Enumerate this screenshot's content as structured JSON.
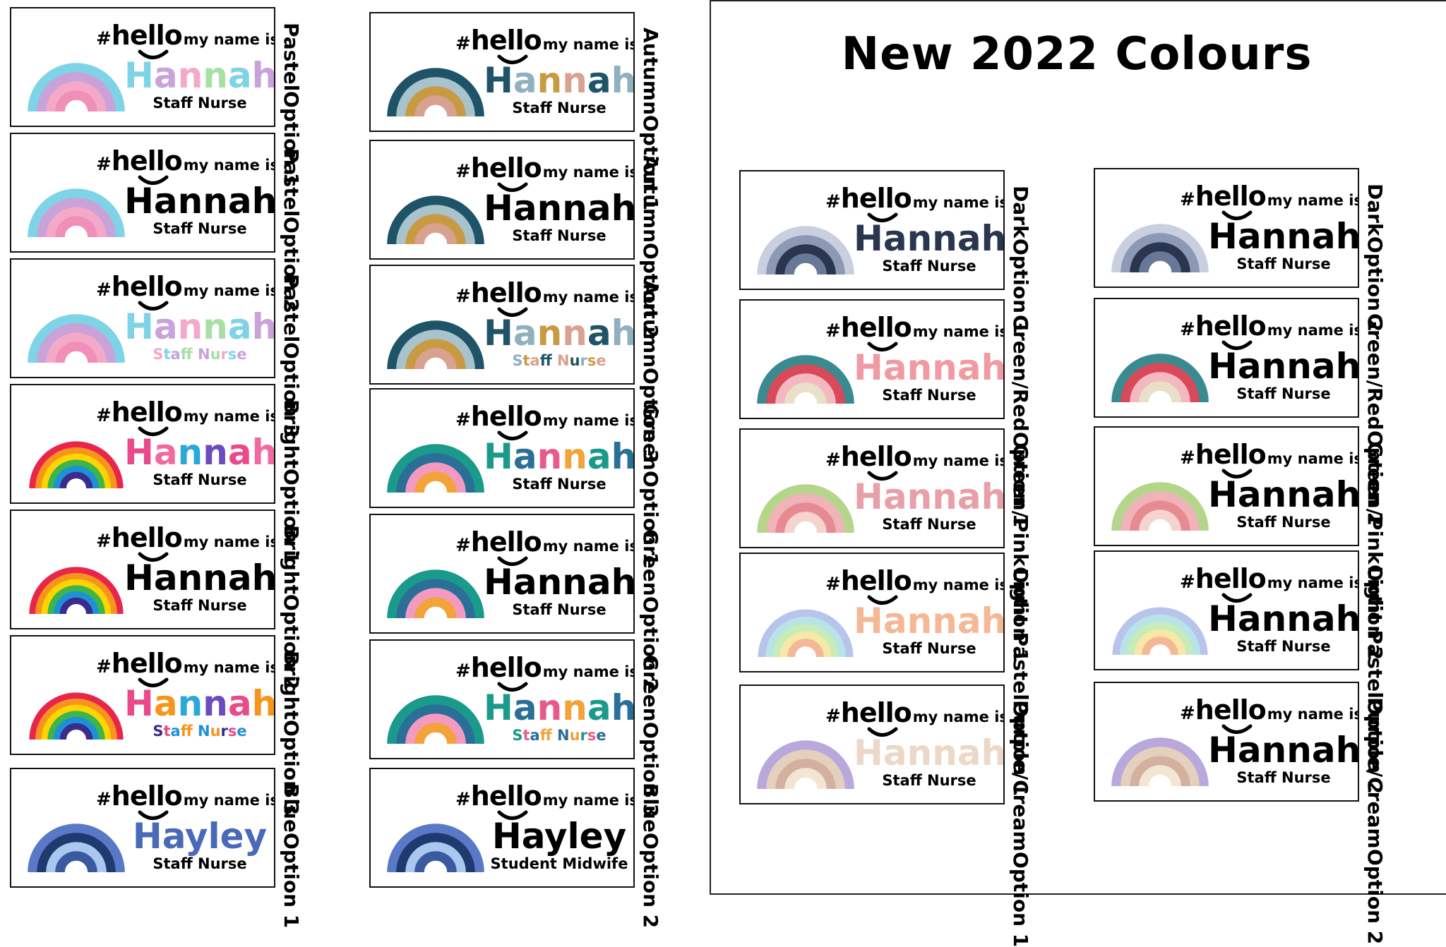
{
  "page_title": "New 2022 Colours",
  "badge_text": {
    "hash": "#",
    "hello": "hello",
    "my_name_is": "my name is..."
  },
  "badges": [
    {
      "id": "pastel-1",
      "name": "Hannah",
      "role": "Staff Nurse",
      "style": "Pastel",
      "option": "Option 1",
      "name_colors": [
        "#7fd3e6",
        "#c8a2d8",
        "#f4a9c8",
        "#a8dfa2"
      ],
      "role_colors": [
        "#000"
      ],
      "arc_colors": [
        "#7fd3e6",
        "#c8a2d8",
        "#f4a9c8",
        "#f08fb8"
      ]
    },
    {
      "id": "pastel-2",
      "name": "Hannah",
      "role": "Staff Nurse",
      "style": "Pastel",
      "option": "Option 2",
      "name_colors": [
        "#000"
      ],
      "role_colors": [
        "#000"
      ],
      "arc_colors": [
        "#7fd3e6",
        "#c8a2d8",
        "#f4a9c8",
        "#f08fb8"
      ]
    },
    {
      "id": "pastel-3",
      "name": "Hannah",
      "role": "Staff Nurse",
      "style": "Pastel",
      "option": "Option 3",
      "name_colors": [
        "#7fd3e6",
        "#c8a2d8",
        "#f4a9c8",
        "#a8dfa2"
      ],
      "role_colors": [
        "#f4a9c8",
        "#7fd3e6",
        "#c8a2d8",
        "#a8dfa2"
      ],
      "arc_colors": [
        "#7fd3e6",
        "#c8a2d8",
        "#f4a9c8",
        "#f08fb8"
      ]
    },
    {
      "id": "bright-1",
      "name": "Hannah",
      "role": "Staff Nurse",
      "style": "Bright",
      "option": "Option 1",
      "name_colors": [
        "#e84a8a",
        "#f06aa0",
        "#2aa9d8",
        "#6a4cc0"
      ],
      "role_colors": [
        "#000"
      ],
      "arc_colors": [
        "#e8264b",
        "#f7941d",
        "#ffd400",
        "#3cb54a",
        "#1e90d8",
        "#3a2b8c"
      ]
    },
    {
      "id": "bright-2",
      "name": "Hannah",
      "role": "Staff Nurse",
      "style": "Bright",
      "option": "Option 2",
      "name_colors": [
        "#000"
      ],
      "role_colors": [
        "#000"
      ],
      "arc_colors": [
        "#e8264b",
        "#f7941d",
        "#ffd400",
        "#3cb54a",
        "#1e90d8",
        "#3a2b8c"
      ]
    },
    {
      "id": "bright-3",
      "name": "Hannah",
      "role": "Staff Nurse",
      "style": "Bright",
      "option": "Option 3",
      "name_colors": [
        "#e84a8a",
        "#f7941d",
        "#2aa9d8",
        "#6a4cc0"
      ],
      "role_colors": [
        "#3a2b8c",
        "#e84a8a",
        "#1e90d8",
        "#f7941d"
      ],
      "arc_colors": [
        "#e8264b",
        "#f7941d",
        "#ffd400",
        "#3cb54a",
        "#1e90d8",
        "#3a2b8c"
      ]
    },
    {
      "id": "blue-1",
      "name": "Hayley",
      "role": "Staff Nurse",
      "style": "Blue",
      "option": "Option 1",
      "name_colors": [
        "#4a6ab8"
      ],
      "role_colors": [
        "#000"
      ],
      "arc_colors": [
        "#5a78c8",
        "#1e3a6e",
        "#a8c8f0",
        "#3a5aa0"
      ]
    },
    {
      "id": "autumn-1",
      "name": "Hannah",
      "role": "Staff Nurse",
      "style": "Autumn",
      "option": "Option 1",
      "name_colors": [
        "#1f5468",
        "#8fb0be",
        "#c99a44",
        "#d9a290"
      ],
      "role_colors": [
        "#000"
      ],
      "arc_colors": [
        "#1f5468",
        "#a8c3cc",
        "#c99a44",
        "#d9a290"
      ]
    },
    {
      "id": "autumn-2",
      "name": "Hannah",
      "role": "Staff Nurse",
      "style": "Autumn",
      "option": "Option 2",
      "name_colors": [
        "#000"
      ],
      "role_colors": [
        "#000"
      ],
      "arc_colors": [
        "#1f5468",
        "#a8c3cc",
        "#c99a44",
        "#d9a290"
      ]
    },
    {
      "id": "autumn-3",
      "name": "Hannah",
      "role": "Staff Nurse",
      "style": "Autumn",
      "option": "Option 3",
      "name_colors": [
        "#1f5468",
        "#8fb0be",
        "#c99a44",
        "#d9a290"
      ],
      "role_colors": [
        "#8fb0be",
        "#c99a44",
        "#d9a290",
        "#1f5468"
      ],
      "arc_colors": [
        "#1f5468",
        "#a8c3cc",
        "#c99a44",
        "#d9a290"
      ]
    },
    {
      "id": "green-1",
      "name": "Hannah",
      "role": "Staff Nurse",
      "style": "Green",
      "option": "Option 1",
      "name_colors": [
        "#1a9a8a",
        "#2a6f97",
        "#e85a8a",
        "#f2a33a"
      ],
      "role_colors": [
        "#000"
      ],
      "arc_colors": [
        "#1a9a8a",
        "#2a6f97",
        "#f49ac0",
        "#f2a33a"
      ]
    },
    {
      "id": "green-2",
      "name": "Hannah",
      "role": "Staff Nurse",
      "style": "Green",
      "option": "Option 2",
      "name_colors": [
        "#000"
      ],
      "role_colors": [
        "#000"
      ],
      "arc_colors": [
        "#1a9a8a",
        "#2a6f97",
        "#f49ac0",
        "#f2a33a"
      ]
    },
    {
      "id": "green-3",
      "name": "Hannah",
      "role": "Staff Nurse",
      "style": "Green",
      "option": "Option 3",
      "name_colors": [
        "#1a9a8a",
        "#2a6f97",
        "#e85a8a",
        "#f2a33a"
      ],
      "role_colors": [
        "#1a9a8a",
        "#e85a8a",
        "#2a6f97",
        "#f2a33a"
      ],
      "arc_colors": [
        "#1a9a8a",
        "#2a6f97",
        "#f49ac0",
        "#f2a33a"
      ]
    },
    {
      "id": "blue-2",
      "name": "Hayley",
      "role": "Student Midwife",
      "style": "Blue",
      "option": "Option 2",
      "name_colors": [
        "#000"
      ],
      "role_colors": [
        "#000"
      ],
      "arc_colors": [
        "#5a78c8",
        "#1e3a6e",
        "#a8c8f0",
        "#3a5aa0"
      ]
    },
    {
      "id": "dark-1",
      "name": "Hannah",
      "role": "Staff Nurse",
      "style": "Dark",
      "option": "Option 1",
      "name_colors": [
        "#2a3550"
      ],
      "role_colors": [
        "#000"
      ],
      "arc_colors": [
        "#c8d0e0",
        "#8c98b4",
        "#2a3550",
        "#6a7898"
      ]
    },
    {
      "id": "greenred-1",
      "name": "Hannah",
      "role": "Staff Nurse",
      "style": "Green/Red",
      "option": "Option 1",
      "name_colors": [
        "#f09aa4"
      ],
      "role_colors": [
        "#000"
      ],
      "arc_colors": [
        "#3a8a90",
        "#d84a5a",
        "#f4b8c0",
        "#e8e0c8"
      ]
    },
    {
      "id": "greenpink-1",
      "name": "Hannah",
      "role": "Staff Nurse",
      "style": "Green/Pink",
      "option": "Option 1",
      "name_colors": [
        "#e8a0a8"
      ],
      "role_colors": [
        "#000"
      ],
      "arc_colors": [
        "#b4d68a",
        "#f0b4b8",
        "#e88a94",
        "#f4d4cc"
      ]
    },
    {
      "id": "lightpastel-1",
      "name": "Hannah",
      "role": "Staff Nurse",
      "style": "Light Pastel",
      "option": "Option 1",
      "name_colors": [
        "#f4b896"
      ],
      "role_colors": [
        "#000"
      ],
      "arc_colors": [
        "#b8c4ec",
        "#b8e4e8",
        "#c8ecb8",
        "#f8e8a8",
        "#f4b896"
      ]
    },
    {
      "id": "purplecream-1",
      "name": "Hannah",
      "role": "Staff Nurse",
      "style": "Purple/Cream",
      "option": "Option 1",
      "name_colors": [
        "#ecd8c8"
      ],
      "role_colors": [
        "#000"
      ],
      "arc_colors": [
        "#b8a8dc",
        "#e4d0bc",
        "#d4b0a0",
        "#f4e4d4"
      ]
    },
    {
      "id": "dark-2",
      "name": "Hannah",
      "role": "Staff Nurse",
      "style": "Dark",
      "option": "Option 2",
      "name_colors": [
        "#000"
      ],
      "role_colors": [
        "#000"
      ],
      "arc_colors": [
        "#c8d0e0",
        "#8c98b4",
        "#2a3550",
        "#6a7898"
      ]
    },
    {
      "id": "greenred-2",
      "name": "Hannah",
      "role": "Staff Nurse",
      "style": "Green/Red",
      "option": "Option 2",
      "name_colors": [
        "#000"
      ],
      "role_colors": [
        "#000"
      ],
      "arc_colors": [
        "#3a8a90",
        "#d84a5a",
        "#f4b8c0",
        "#e8e0c8"
      ]
    },
    {
      "id": "greenpink-2",
      "name": "Hannah",
      "role": "Staff Nurse",
      "style": "Green/Pink",
      "option": "Option 2",
      "name_colors": [
        "#000"
      ],
      "role_colors": [
        "#000"
      ],
      "arc_colors": [
        "#b4d68a",
        "#f0b4b8",
        "#e88a94",
        "#f4d4cc"
      ]
    },
    {
      "id": "lightpastel-2",
      "name": "Hannah",
      "role": "Staff Nurse",
      "style": "Light Pastel",
      "option": "Option 2",
      "name_colors": [
        "#000"
      ],
      "role_colors": [
        "#000"
      ],
      "arc_colors": [
        "#b8c4ec",
        "#b8e4e8",
        "#c8ecb8",
        "#f8e8a8",
        "#f4b896"
      ]
    },
    {
      "id": "purplecream-2",
      "name": "Hannah",
      "role": "Staff Nurse",
      "style": "Purple/Cream",
      "option": "Option 2",
      "name_colors": [
        "#000"
      ],
      "role_colors": [
        "#000"
      ],
      "arc_colors": [
        "#b8a8dc",
        "#e4d0bc",
        "#d4b0a0",
        "#f4e4d4"
      ]
    }
  ]
}
